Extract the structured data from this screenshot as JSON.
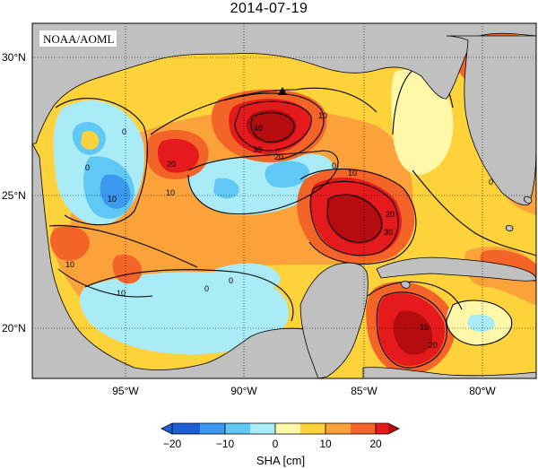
{
  "title": "2014-07-19",
  "credit": "NOAA/AOML",
  "colors": {
    "land": "#c0c0c0",
    "neg20": "#1e5fd8",
    "neg15": "#3b9af0",
    "neg10": "#60c8f4",
    "neg5": "#a9ecf8",
    "pos0": "#fff8a8",
    "pos5": "#fdd23a",
    "pos10": "#fba33a",
    "pos15": "#f46428",
    "pos20": "#e41a1c",
    "over": "#b50c10"
  },
  "map": {
    "lon_ticks": [
      "95°W",
      "90°W",
      "85°W",
      "80°W"
    ],
    "lat_ticks": [
      "30°N",
      "25°N",
      "20°N"
    ],
    "contour_labels": [
      "0",
      "0",
      "0",
      "0",
      "10",
      "10",
      "10",
      "10",
      "10",
      "20",
      "20",
      "20",
      "30",
      "30",
      "40",
      "10",
      "10",
      "0",
      "0",
      "20"
    ],
    "marker_icon": "triangle-marker"
  },
  "colorbar": {
    "tick_labels": [
      "−20",
      "−10",
      "0",
      "10",
      "20"
    ],
    "label": "SHA [cm]"
  }
}
